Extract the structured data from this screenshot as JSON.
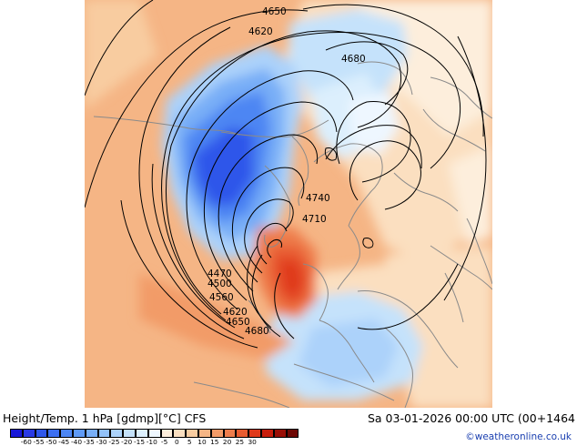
{
  "map": {
    "contour_labels": [
      "4650",
      "4620",
      "4680",
      "4740",
      "4710",
      "4470",
      "4500",
      "4560",
      "4620",
      "4650",
      "4680"
    ]
  },
  "footer": {
    "title": "Height/Temp. 1 hPa [gdmp][°C] CFS",
    "datetime": "Sa 03-01-2026 00:00 UTC (00+1464",
    "credit": "©weatheronline.co.uk"
  },
  "colorbar": {
    "labels": [
      "-60",
      "-55",
      "-50",
      "-45",
      "-40",
      "-35",
      "-30",
      "-25",
      "-20",
      "-15",
      "-10",
      "-5",
      "0",
      "5",
      "10",
      "15",
      "20",
      "25",
      "30"
    ],
    "colors": [
      "#1818d8",
      "#2a3ae4",
      "#2f57ea",
      "#3c6ff0",
      "#4d86f3",
      "#5f9af5",
      "#78aef7",
      "#92c1f8",
      "#acd2fa",
      "#c5e2fb",
      "#dceffd",
      "#eef7ff",
      "#fdeedc",
      "#fbdfc0",
      "#f8cca0",
      "#f5b585",
      "#f29b68",
      "#ee7d4c",
      "#e85c30",
      "#e03a1a",
      "#c81e0c",
      "#9a0e06",
      "#6e0804"
    ]
  }
}
